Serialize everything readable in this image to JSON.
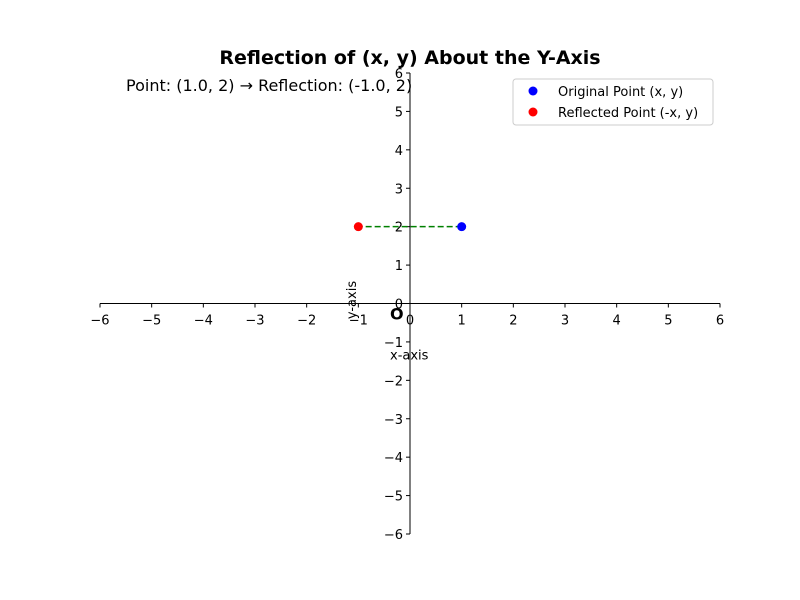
{
  "chart_data": {
    "type": "scatter",
    "title": "Reflection of (x, y) About the Y-Axis",
    "annotation": "Point: (1.0, 2) → Reflection: (-1.0, 2)",
    "xlabel": "x-axis",
    "ylabel": "y-axis",
    "origin_label": "O",
    "xlim": [
      -6,
      6
    ],
    "ylim": [
      -6,
      6
    ],
    "x_ticks": [
      -6,
      -5,
      -4,
      -3,
      -2,
      -1,
      0,
      1,
      2,
      3,
      4,
      5,
      6
    ],
    "y_ticks": [
      -6,
      -5,
      -4,
      -3,
      -2,
      -1,
      0,
      1,
      2,
      3,
      4,
      5,
      6
    ],
    "x_tick_labels": [
      "−6",
      "−5",
      "−4",
      "−3",
      "−2",
      "−1",
      "0",
      "1",
      "2",
      "3",
      "4",
      "5",
      "6"
    ],
    "y_tick_labels": [
      "−6",
      "−5",
      "−4",
      "−3",
      "−2",
      "−1",
      "0",
      "1",
      "2",
      "3",
      "4",
      "5",
      "6"
    ],
    "grid": false,
    "legend_position": "top-right",
    "series": [
      {
        "name": "Original Point (x, y)",
        "color": "#0000ff",
        "x": [
          1.0
        ],
        "y": [
          2
        ]
      },
      {
        "name": "Reflected Point (-x, y)",
        "color": "#ff0000",
        "x": [
          -1.0
        ],
        "y": [
          2
        ]
      }
    ],
    "connector": {
      "x": [
        1.0,
        -1.0
      ],
      "y": [
        2,
        2
      ],
      "color": "#008000",
      "style": "dashed"
    }
  }
}
